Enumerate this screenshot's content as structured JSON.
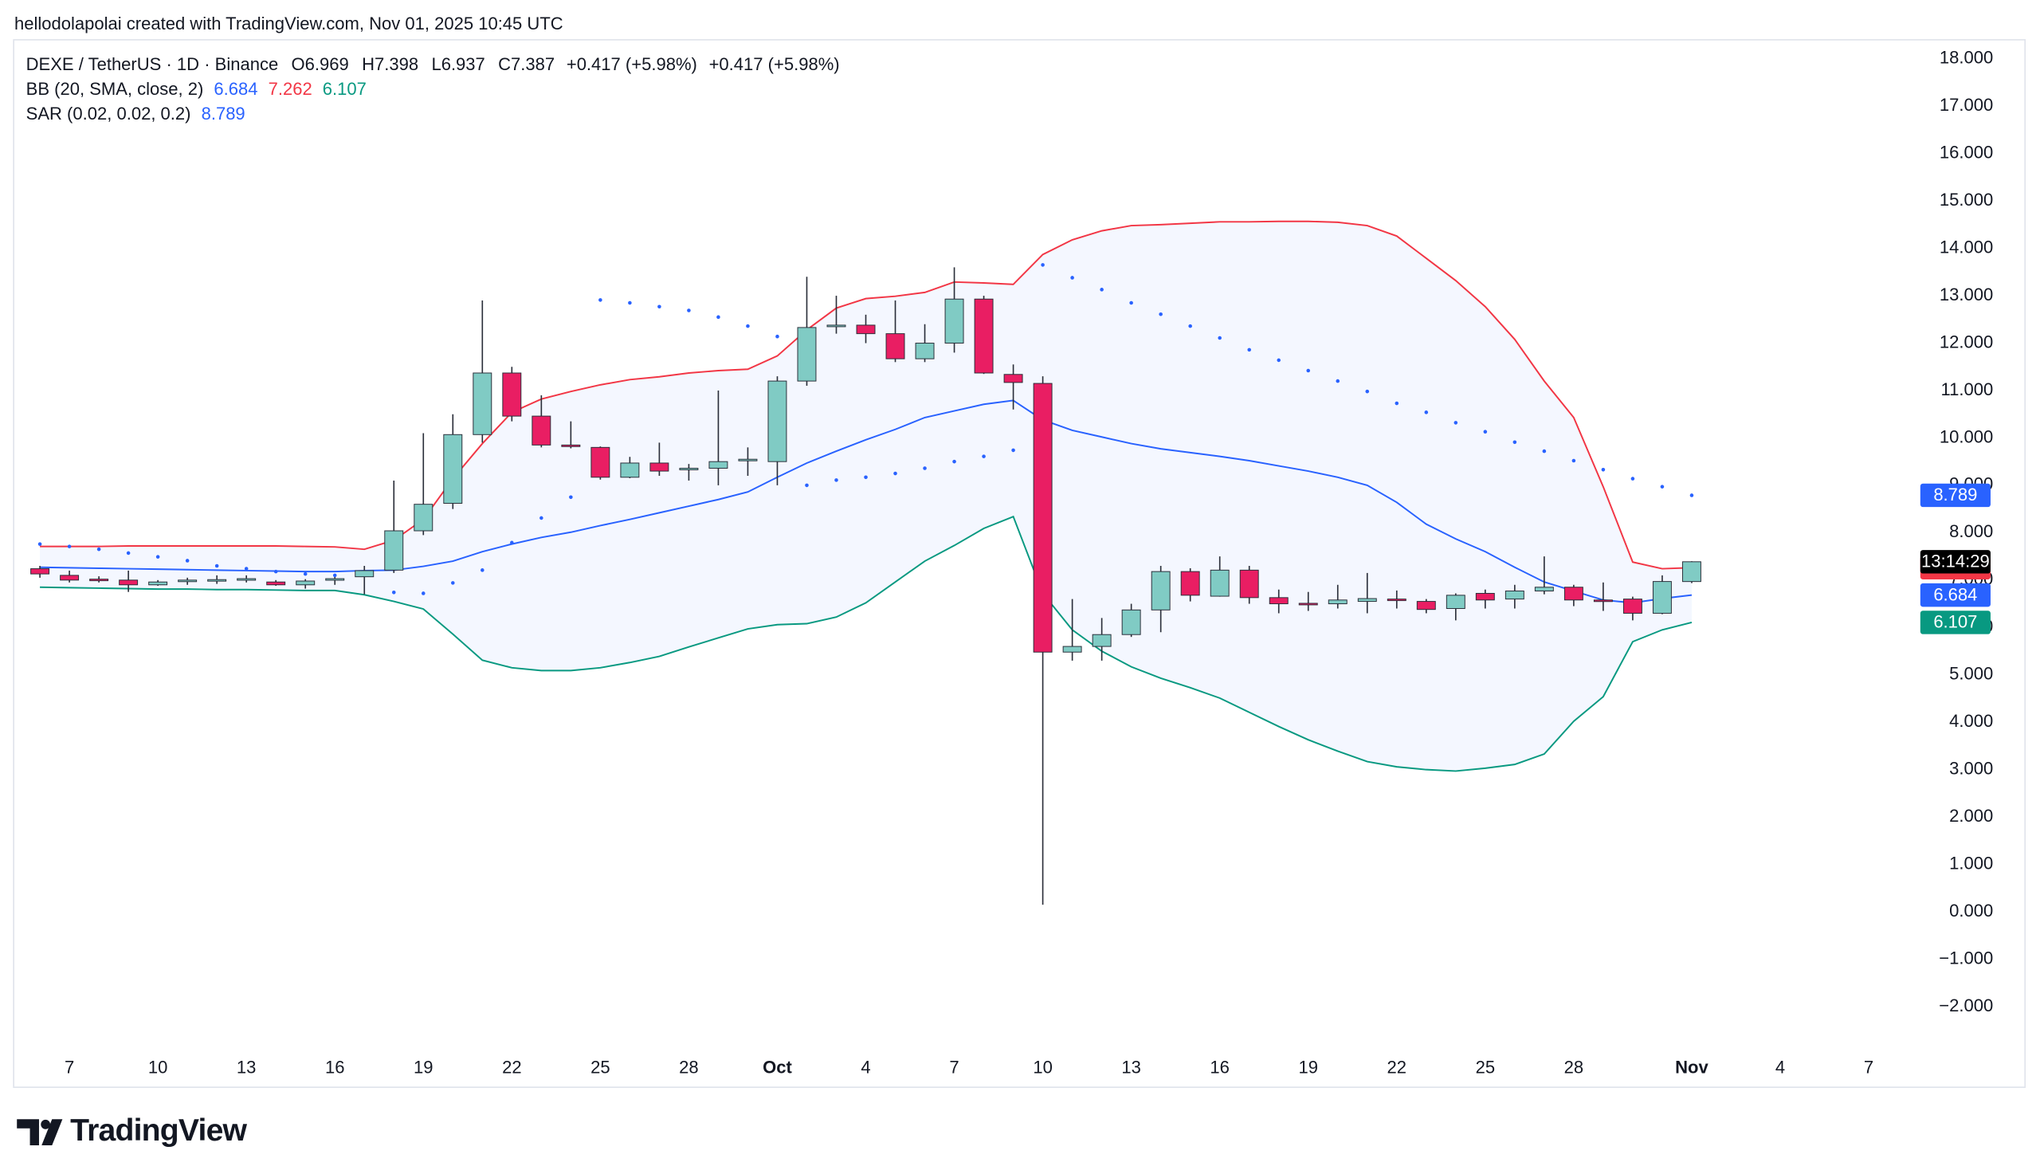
{
  "header": {
    "attribution": "hellodolapolai created with TradingView.com, Nov 01, 2025 10:45 UTC",
    "symbol": "DEXE / TetherUS · 1D · Binance",
    "ohlc": [
      {
        "label": "O",
        "value": 6.969
      },
      {
        "label": "H",
        "value": 7.398
      },
      {
        "label": "L",
        "value": 6.937
      },
      {
        "label": "C",
        "value": 7.387
      }
    ],
    "change": "+0.417 (+5.98%)",
    "bb_label": "BB (20, SMA, close, 2)",
    "sar_label": "SAR (0.02, 0.02, 0.2)",
    "countdown": "13:14:29",
    "brand": "TradingView"
  },
  "chart_data": {
    "type": "candlestick",
    "x": [
      "2025-09-06",
      "2025-09-07",
      "2025-09-08",
      "2025-09-09",
      "2025-09-10",
      "2025-09-11",
      "2025-09-12",
      "2025-09-13",
      "2025-09-14",
      "2025-09-15",
      "2025-09-16",
      "2025-09-17",
      "2025-09-18",
      "2025-09-19",
      "2025-09-20",
      "2025-09-21",
      "2025-09-22",
      "2025-09-23",
      "2025-09-24",
      "2025-09-25",
      "2025-09-26",
      "2025-09-27",
      "2025-09-28",
      "2025-09-29",
      "2025-09-30",
      "2025-10-01",
      "2025-10-02",
      "2025-10-03",
      "2025-10-04",
      "2025-10-05",
      "2025-10-06",
      "2025-10-07",
      "2025-10-08",
      "2025-10-09",
      "2025-10-10",
      "2025-10-11",
      "2025-10-12",
      "2025-10-13",
      "2025-10-14",
      "2025-10-15",
      "2025-10-16",
      "2025-10-17",
      "2025-10-18",
      "2025-10-19",
      "2025-10-20",
      "2025-10-21",
      "2025-10-22",
      "2025-10-23",
      "2025-10-24",
      "2025-10-25",
      "2025-10-26",
      "2025-10-27",
      "2025-10-28",
      "2025-10-29",
      "2025-10-30",
      "2025-10-31",
      "2025-11-01"
    ],
    "open": [
      7.24,
      7.1,
      7.02,
      7.0,
      6.9,
      6.98,
      6.99,
      7.0,
      6.96,
      6.9,
      7.0,
      7.07,
      7.21,
      8.04,
      8.62,
      10.07,
      11.37,
      10.46,
      9.85,
      9.8,
      9.17,
      9.47,
      9.33,
      9.36,
      9.52,
      9.5,
      11.2,
      12.36,
      12.38,
      12.2,
      11.67,
      12.0,
      12.93,
      11.34,
      11.15,
      5.48,
      5.6,
      5.85,
      6.37,
      7.18,
      6.66,
      7.21,
      6.63,
      6.51,
      6.5,
      6.55,
      6.6,
      6.55,
      6.4,
      6.72,
      6.6,
      6.77,
      6.85,
      6.58,
      6.6,
      6.3,
      6.969
    ],
    "high": [
      7.3,
      7.2,
      7.08,
      7.2,
      7.0,
      7.05,
      7.1,
      7.1,
      7.0,
      7.02,
      7.1,
      7.3,
      9.1,
      10.1,
      10.5,
      12.9,
      11.5,
      10.9,
      10.35,
      9.82,
      9.6,
      9.9,
      9.45,
      11.0,
      9.8,
      11.3,
      13.4,
      13.0,
      12.6,
      12.9,
      12.4,
      13.6,
      13.0,
      11.55,
      11.3,
      6.6,
      6.2,
      6.5,
      7.3,
      7.25,
      7.5,
      7.3,
      6.8,
      6.75,
      6.9,
      7.15,
      6.78,
      6.6,
      6.72,
      6.8,
      6.9,
      7.5,
      6.9,
      6.95,
      6.65,
      7.1,
      7.398
    ],
    "low": [
      7.05,
      6.95,
      6.95,
      6.75,
      6.88,
      6.9,
      6.92,
      6.95,
      6.88,
      6.82,
      6.9,
      6.7,
      7.15,
      7.95,
      8.5,
      9.9,
      10.35,
      9.8,
      9.78,
      9.12,
      9.15,
      9.2,
      9.1,
      9.0,
      9.2,
      9.0,
      11.1,
      12.2,
      12.0,
      11.6,
      11.6,
      11.8,
      11.35,
      10.6,
      0.15,
      5.3,
      5.3,
      5.8,
      5.9,
      6.55,
      6.65,
      6.5,
      6.3,
      6.35,
      6.4,
      6.3,
      6.4,
      6.3,
      6.15,
      6.4,
      6.4,
      6.7,
      6.45,
      6.35,
      6.15,
      6.28,
      6.937
    ],
    "close": [
      7.13,
      7.0,
      7.0,
      6.9,
      6.96,
      7.0,
      7.01,
      7.03,
      6.9,
      6.98,
      7.03,
      7.2,
      8.04,
      8.6,
      10.07,
      11.37,
      10.46,
      9.85,
      9.83,
      9.17,
      9.47,
      9.3,
      9.36,
      9.5,
      9.55,
      11.2,
      12.33,
      12.38,
      12.2,
      11.67,
      12.0,
      12.93,
      11.37,
      11.17,
      5.48,
      5.6,
      5.85,
      6.37,
      7.18,
      6.68,
      7.21,
      6.63,
      6.5,
      6.5,
      6.58,
      6.61,
      6.57,
      6.38,
      6.68,
      6.58,
      6.77,
      6.85,
      6.58,
      6.55,
      6.3,
      6.97,
      7.387
    ],
    "up_color": "#80cbc4",
    "down_color": "#e91e63",
    "wick_color": "#2a2e39",
    "bb": {
      "fill_color": "#2962ff",
      "upper": {
        "color": "#f23645",
        "values": [
          7.71,
          7.71,
          7.71,
          7.72,
          7.72,
          7.72,
          7.72,
          7.72,
          7.72,
          7.71,
          7.7,
          7.65,
          7.84,
          8.28,
          9.14,
          9.88,
          10.54,
          10.82,
          10.98,
          11.12,
          11.23,
          11.29,
          11.37,
          11.42,
          11.45,
          11.73,
          12.28,
          12.74,
          12.94,
          12.99,
          13.07,
          13.29,
          13.27,
          13.24,
          13.87,
          14.18,
          14.37,
          14.48,
          14.5,
          14.53,
          14.56,
          14.56,
          14.57,
          14.57,
          14.55,
          14.48,
          14.26,
          13.79,
          13.32,
          12.77,
          12.08,
          11.2,
          10.43,
          8.97,
          7.38,
          7.24,
          7.262
        ]
      },
      "basis": {
        "color": "#2962ff",
        "values": [
          7.27,
          7.26,
          7.25,
          7.24,
          7.23,
          7.22,
          7.21,
          7.2,
          7.19,
          7.18,
          7.18,
          7.2,
          7.21,
          7.29,
          7.4,
          7.6,
          7.76,
          7.9,
          8.01,
          8.15,
          8.28,
          8.42,
          8.56,
          8.7,
          8.86,
          9.17,
          9.47,
          9.72,
          9.96,
          10.18,
          10.43,
          10.57,
          10.71,
          10.79,
          10.38,
          10.16,
          10.02,
          9.88,
          9.77,
          9.69,
          9.61,
          9.52,
          9.41,
          9.3,
          9.17,
          9.0,
          8.64,
          8.18,
          7.87,
          7.6,
          7.27,
          6.96,
          6.77,
          6.58,
          6.52,
          6.61,
          6.684
        ]
      },
      "lower": {
        "color": "#089981",
        "values": [
          6.85,
          6.84,
          6.83,
          6.82,
          6.81,
          6.81,
          6.8,
          6.8,
          6.79,
          6.78,
          6.78,
          6.69,
          6.55,
          6.39,
          5.86,
          5.31,
          5.15,
          5.09,
          5.09,
          5.15,
          5.26,
          5.39,
          5.59,
          5.78,
          5.97,
          6.06,
          6.08,
          6.22,
          6.52,
          6.96,
          7.4,
          7.73,
          8.09,
          8.34,
          6.72,
          5.95,
          5.5,
          5.17,
          4.93,
          4.73,
          4.51,
          4.21,
          3.91,
          3.63,
          3.39,
          3.17,
          3.06,
          3.0,
          2.97,
          3.03,
          3.11,
          3.33,
          4.02,
          4.54,
          5.7,
          5.95,
          6.107
        ]
      }
    },
    "sar": {
      "color": "#2962ff",
      "values": [
        7.76,
        7.71,
        7.65,
        7.57,
        7.49,
        7.41,
        7.3,
        7.24,
        7.18,
        7.13,
        7.1,
        null,
        6.74,
        6.72,
        6.94,
        7.21,
        7.79,
        8.31,
        8.75,
        12.91,
        12.85,
        12.77,
        12.69,
        12.55,
        12.36,
        12.14,
        9.0,
        9.11,
        9.17,
        9.25,
        9.36,
        9.5,
        9.61,
        9.74,
        13.65,
        13.38,
        13.13,
        12.85,
        12.61,
        12.36,
        12.11,
        11.86,
        11.64,
        11.42,
        11.2,
        10.98,
        10.73,
        10.54,
        10.32,
        10.13,
        9.91,
        9.72,
        9.52,
        9.33,
        9.14,
        8.97,
        8.789
      ]
    },
    "xlim": [
      "2025-09-05",
      "2025-11-08"
    ],
    "xticks": [
      {
        "value": "2025-09-07",
        "label": "7"
      },
      {
        "value": "2025-09-10",
        "label": "10"
      },
      {
        "value": "2025-09-13",
        "label": "13"
      },
      {
        "value": "2025-09-16",
        "label": "16"
      },
      {
        "value": "2025-09-19",
        "label": "19"
      },
      {
        "value": "2025-09-22",
        "label": "22"
      },
      {
        "value": "2025-09-25",
        "label": "25"
      },
      {
        "value": "2025-09-28",
        "label": "28"
      },
      {
        "value": "2025-10-01",
        "label": "Oct"
      },
      {
        "value": "2025-10-04",
        "label": "4"
      },
      {
        "value": "2025-10-07",
        "label": "7"
      },
      {
        "value": "2025-10-10",
        "label": "10"
      },
      {
        "value": "2025-10-13",
        "label": "13"
      },
      {
        "value": "2025-10-16",
        "label": "16"
      },
      {
        "value": "2025-10-19",
        "label": "19"
      },
      {
        "value": "2025-10-22",
        "label": "22"
      },
      {
        "value": "2025-10-25",
        "label": "25"
      },
      {
        "value": "2025-10-28",
        "label": "28"
      },
      {
        "value": "2025-11-01",
        "label": "Nov"
      },
      {
        "value": "2025-11-04",
        "label": "4"
      },
      {
        "value": "2025-11-07",
        "label": "7"
      }
    ],
    "ylim": [
      -2.78,
      18.36
    ],
    "yticks": [
      {
        "value": -2,
        "label": "−2.000"
      },
      {
        "value": -1,
        "label": "−1.000"
      },
      {
        "value": 0,
        "label": "0.000"
      },
      {
        "value": 1,
        "label": "1.000"
      },
      {
        "value": 2,
        "label": "2.000"
      },
      {
        "value": 3,
        "label": "3.000"
      },
      {
        "value": 4,
        "label": "4.000"
      },
      {
        "value": 5,
        "label": "5.000"
      },
      {
        "value": 6,
        "label": "6.000"
      },
      {
        "value": 7,
        "label": "7.000"
      },
      {
        "value": 8,
        "label": "8.000"
      },
      {
        "value": 9,
        "label": "9.000"
      },
      {
        "value": 10,
        "label": "10.000"
      },
      {
        "value": 11,
        "label": "11.000"
      },
      {
        "value": 12,
        "label": "12.000"
      },
      {
        "value": 13,
        "label": "13.000"
      },
      {
        "value": 14,
        "label": "14.000"
      },
      {
        "value": 15,
        "label": "15.000"
      },
      {
        "value": 16,
        "label": "16.000"
      },
      {
        "value": 17,
        "label": "17.000"
      },
      {
        "value": 18,
        "label": "18.000"
      }
    ],
    "grid": false
  }
}
